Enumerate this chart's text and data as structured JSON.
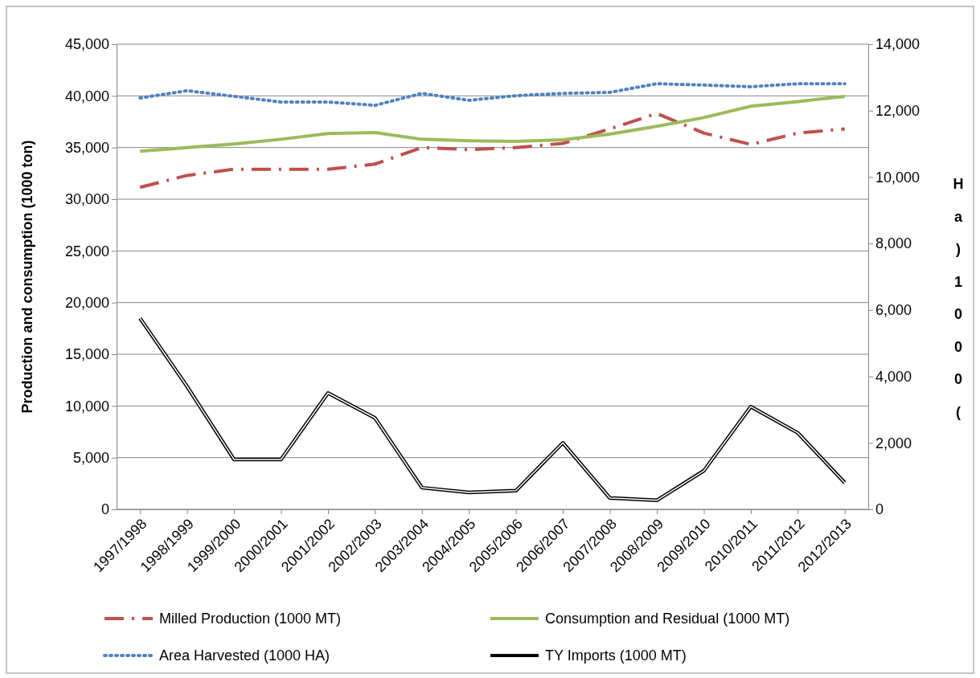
{
  "chart_data": {
    "type": "line",
    "ylabel": "Production and consumption (1000 ton)",
    "y2label": "Ha)1000(",
    "categories": [
      "1997/1998",
      "1998/1999",
      "1999/2000",
      "2000/2001",
      "2001/2002",
      "2002/2003",
      "2003/2004",
      "2004/2005",
      "2005/2006",
      "2006/2007",
      "2007/2008",
      "2008/2009",
      "2009/2010",
      "2010/2011",
      "2011/2012",
      "2012/2013"
    ],
    "ylim": [
      0,
      45000
    ],
    "yticks": [
      {
        "value": 0,
        "label": "0"
      },
      {
        "value": 5000,
        "label": "5,000"
      },
      {
        "value": 10000,
        "label": "10,000"
      },
      {
        "value": 15000,
        "label": "15,000"
      },
      {
        "value": 20000,
        "label": "20,000"
      },
      {
        "value": 25000,
        "label": "25,000"
      },
      {
        "value": 30000,
        "label": "30,000"
      },
      {
        "value": 35000,
        "label": "35,000"
      },
      {
        "value": 40000,
        "label": "40,000"
      },
      {
        "value": 45000,
        "label": "45,000"
      }
    ],
    "y2lim": [
      0,
      14000
    ],
    "y2ticks": [
      {
        "value": 0,
        "label": "0"
      },
      {
        "value": 2000,
        "label": "2,000"
      },
      {
        "value": 4000,
        "label": "4,000"
      },
      {
        "value": 6000,
        "label": "6,000"
      },
      {
        "value": 8000,
        "label": "8,000"
      },
      {
        "value": 10000,
        "label": "10,000"
      },
      {
        "value": 12000,
        "label": "12,000"
      },
      {
        "value": 14000,
        "label": "14,000"
      }
    ],
    "grid": "y",
    "legend": "bottom",
    "marker": "none",
    "series": [
      {
        "name": "Milled Production (1000 MT)",
        "color": "#c0504d",
        "line_style": "dashed",
        "values": [
          31150,
          32300,
          32900,
          32900,
          32900,
          33400,
          35000,
          34800,
          35000,
          35400,
          36800,
          38300,
          36400,
          35300,
          36400,
          36800
        ]
      },
      {
        "name": "Consumption and Residual (1000 MT)",
        "color": "#9bbb59",
        "line_style": "solid",
        "values": [
          34650,
          35000,
          35350,
          35800,
          36350,
          36450,
          35800,
          35650,
          35600,
          35750,
          36300,
          37050,
          37900,
          39000,
          39450,
          39950
        ]
      },
      {
        "name": "Area Harvested (1000 HA)",
        "color": "#4f81bd",
        "line_style": "dotted",
        "axis": "y2",
        "values": [
          12380,
          12600,
          12430,
          12260,
          12260,
          12160,
          12520,
          12310,
          12450,
          12520,
          12550,
          12810,
          12770,
          12720,
          12810,
          12810
        ]
      },
      {
        "name": "TY Imports (1000 MT)",
        "color": "#000000",
        "line_style": "solid",
        "axis": "y2",
        "values": [
          5750,
          3700,
          1500,
          1500,
          3500,
          2750,
          650,
          510,
          560,
          2000,
          340,
          270,
          1160,
          3090,
          2300,
          800
        ]
      }
    ]
  }
}
